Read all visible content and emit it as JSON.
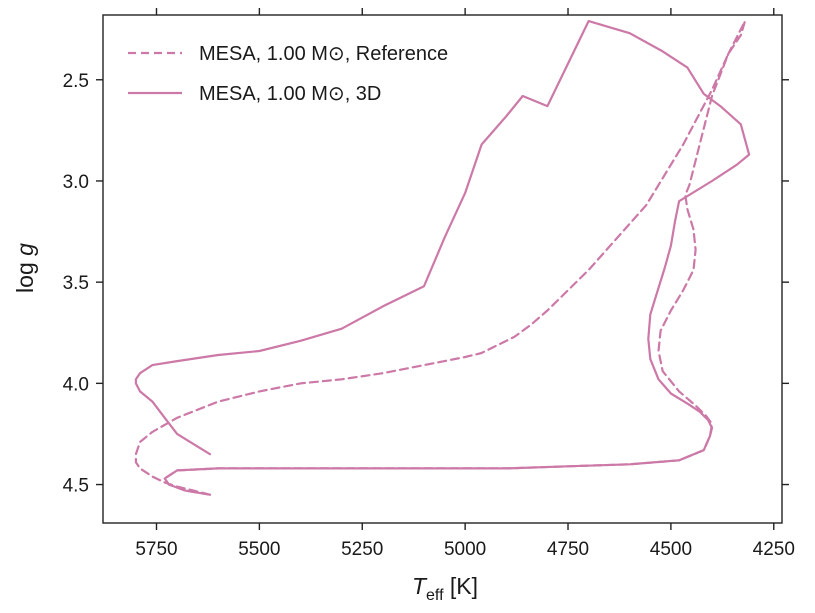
{
  "chart_data": {
    "type": "line",
    "title": "",
    "xlabel_main": "T",
    "xlabel_sub": "eff",
    "xlabel_unit": "[K]",
    "ylabel_main": "log",
    "ylabel_var": "g",
    "xlim": [
      5880,
      4230
    ],
    "ylim": [
      2.18,
      4.69
    ],
    "x_reversed": true,
    "y_reversed": true,
    "xticks": [
      5750,
      5500,
      5250,
      5000,
      4750,
      4500,
      4250
    ],
    "xtick_labels": [
      "5750",
      "5500",
      "5250",
      "5000",
      "4750",
      "4500",
      "4250"
    ],
    "yticks": [
      2.5,
      3.0,
      3.5,
      4.0,
      4.5
    ],
    "ytick_labels": [
      "2.5",
      "3.0",
      "3.5",
      "4.0",
      "4.5"
    ],
    "grid": false,
    "legend_position": "top-left",
    "color": "#cc79a7",
    "series": [
      {
        "name": "Reference",
        "legend_label": "MESA, 1.00 M⊙, Reference",
        "line_style": "dashed",
        "x": [
          5620,
          5680,
          5720,
          5730,
          5700,
          5600,
          5450,
          5300,
          5100,
          4900,
          4750,
          4600,
          4480,
          4420,
          4405,
          4400,
          4415,
          4440,
          4480,
          4520,
          4530,
          4525,
          4500,
          4470,
          4445,
          4440,
          4445,
          4460,
          4465,
          4455,
          4400,
          4360,
          4320,
          4330,
          4360,
          4400,
          4470,
          4560,
          4700,
          4800,
          4840,
          4880,
          4930,
          4960,
          5000,
          5050,
          5100,
          5200,
          5300,
          5400,
          5500,
          5600,
          5700,
          5760,
          5790,
          5800,
          5800,
          5790,
          5760,
          5730,
          5700,
          5660,
          5620
        ],
        "y": [
          4.55,
          4.53,
          4.5,
          4.47,
          4.43,
          4.42,
          4.42,
          4.42,
          4.42,
          4.42,
          4.41,
          4.4,
          4.38,
          4.33,
          4.26,
          4.2,
          4.16,
          4.11,
          4.04,
          3.94,
          3.84,
          3.74,
          3.64,
          3.54,
          3.44,
          3.34,
          3.24,
          3.14,
          3.07,
          3.02,
          2.58,
          2.37,
          2.21,
          2.28,
          2.37,
          2.55,
          2.82,
          3.12,
          3.44,
          3.64,
          3.71,
          3.77,
          3.82,
          3.85,
          3.87,
          3.89,
          3.91,
          3.95,
          3.98,
          4.0,
          4.04,
          4.09,
          4.17,
          4.24,
          4.29,
          4.35,
          4.39,
          4.42,
          4.46,
          4.49,
          4.51,
          4.53,
          4.55
        ]
      },
      {
        "name": "3D",
        "legend_label": "MESA, 1.00 M⊙, 3D",
        "line_style": "solid",
        "x": [
          5620,
          5680,
          5720,
          5730,
          5700,
          5600,
          5450,
          5300,
          5100,
          4900,
          4750,
          4600,
          4480,
          4420,
          4405,
          4400,
          4410,
          4430,
          4460,
          4500,
          4530,
          4550,
          4555,
          4550,
          4535,
          4515,
          4500,
          4490,
          4480,
          4400,
          4340,
          4310,
          4330,
          4380,
          4420,
          4460,
          4520,
          4600,
          4700,
          4800,
          4860,
          4900,
          4960,
          5000,
          5050,
          5100,
          5200,
          5300,
          5400,
          5500,
          5600,
          5700,
          5760,
          5790,
          5800,
          5800,
          5790,
          5760,
          5730,
          5700,
          5660,
          5620
        ],
        "y": [
          4.55,
          4.53,
          4.5,
          4.47,
          4.43,
          4.42,
          4.42,
          4.42,
          4.42,
          4.42,
          4.41,
          4.4,
          4.38,
          4.33,
          4.26,
          4.22,
          4.18,
          4.14,
          4.1,
          4.05,
          3.98,
          3.88,
          3.78,
          3.66,
          3.56,
          3.43,
          3.32,
          3.2,
          3.1,
          3.0,
          2.92,
          2.87,
          2.72,
          2.63,
          2.57,
          2.44,
          2.36,
          2.27,
          2.21,
          2.63,
          2.58,
          2.68,
          2.82,
          3.06,
          3.28,
          3.52,
          3.62,
          3.73,
          3.79,
          3.84,
          3.86,
          3.89,
          3.91,
          3.95,
          3.98,
          4.0,
          4.04,
          4.09,
          4.17,
          4.25,
          4.3,
          4.35
        ]
      }
    ]
  }
}
